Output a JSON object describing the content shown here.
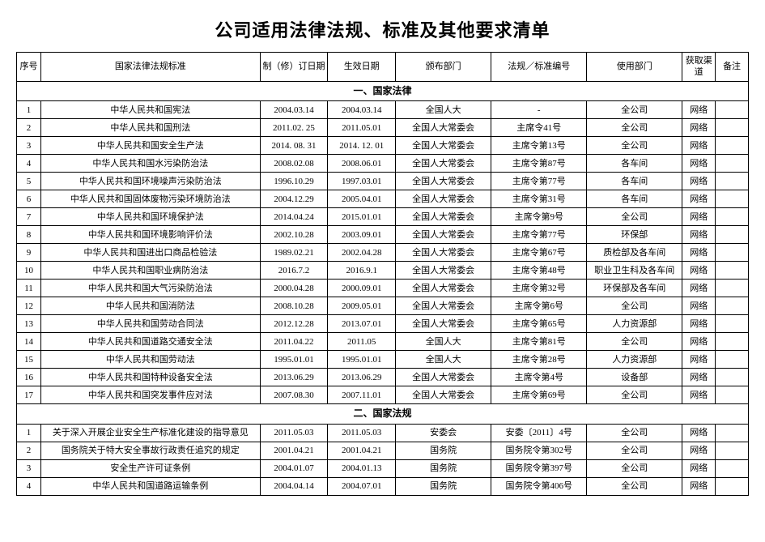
{
  "title": "公司适用法律法规、标准及其他要求清单",
  "columns": {
    "seq": "序号",
    "name": "国家法律法规标准",
    "revision": "制（修）订日期",
    "effective": "生效日期",
    "issuer": "颁布部门",
    "code": "法规／标准编号",
    "userDept": "使用部门",
    "channel": "获取渠道",
    "note": "备注"
  },
  "sections": [
    {
      "heading": "一、国家法律",
      "rows": [
        {
          "seq": "1",
          "name": "中华人民共和国宪法",
          "rev": "2004.03.14",
          "eff": "2004.03.14",
          "issuer": "全国人大",
          "code": "-",
          "use": "全公司",
          "chan": "网络",
          "note": ""
        },
        {
          "seq": "2",
          "name": "中华人民共和国刑法",
          "rev": "2011.02. 25",
          "eff": "2011.05.01",
          "issuer": "全国人大常委会",
          "code": "主席令41号",
          "use": "全公司",
          "chan": "网络",
          "note": ""
        },
        {
          "seq": "3",
          "name": "中华人民共和国安全生产法",
          "rev": "2014. 08. 31",
          "eff": "2014. 12. 01",
          "issuer": "全国人大常委会",
          "code": "主席令第13号",
          "use": "全公司",
          "chan": "网络",
          "note": ""
        },
        {
          "seq": "4",
          "name": "中华人民共和国水污染防治法",
          "rev": "2008.02.08",
          "eff": "2008.06.01",
          "issuer": "全国人大常委会",
          "code": "主席令第87号",
          "use": "各车间",
          "chan": "网络",
          "note": ""
        },
        {
          "seq": "5",
          "name": "中华人民共和国环境噪声污染防治法",
          "rev": "1996.10.29",
          "eff": "1997.03.01",
          "issuer": "全国人大常委会",
          "code": "主席令第77号",
          "use": "各车间",
          "chan": "网络",
          "note": ""
        },
        {
          "seq": "6",
          "name": "中华人民共和国固体废物污染环境防治法",
          "rev": "2004.12.29",
          "eff": "2005.04.01",
          "issuer": "全国人大常委会",
          "code": "主席令第31号",
          "use": "各车间",
          "chan": "网络",
          "note": ""
        },
        {
          "seq": "7",
          "name": "中华人民共和国环境保护法",
          "rev": "2014.04.24",
          "eff": "2015.01.01",
          "issuer": "全国人大常委会",
          "code": "主席令第9号",
          "use": "全公司",
          "chan": "网络",
          "note": ""
        },
        {
          "seq": "8",
          "name": "中华人民共和国环境影响评价法",
          "rev": "2002.10.28",
          "eff": "2003.09.01",
          "issuer": "全国人大常委会",
          "code": "主席令第77号",
          "use": "环保部",
          "chan": "网络",
          "note": ""
        },
        {
          "seq": "9",
          "name": "中华人民共和国进出口商品检验法",
          "rev": "1989.02.21",
          "eff": "2002.04.28",
          "issuer": "全国人大常委会",
          "code": "主席令第67号",
          "use": "质检部及各车间",
          "chan": "网络",
          "note": ""
        },
        {
          "seq": "10",
          "name": "中华人民共和国职业病防治法",
          "rev": "2016.7.2",
          "eff": "2016.9.1",
          "issuer": "全国人大常委会",
          "code": "主席令第48号",
          "use": "职业卫生科及各车间",
          "chan": "网络",
          "note": ""
        },
        {
          "seq": "11",
          "name": "中华人民共和国大气污染防治法",
          "rev": "2000.04.28",
          "eff": "2000.09.01",
          "issuer": "全国人大常委会",
          "code": "主席令第32号",
          "use": "环保部及各车间",
          "chan": "网络",
          "note": ""
        },
        {
          "seq": "12",
          "name": "中华人民共和国消防法",
          "rev": "2008.10.28",
          "eff": "2009.05.01",
          "issuer": "全国人大常委会",
          "code": "主席令第6号",
          "use": "全公司",
          "chan": "网络",
          "note": ""
        },
        {
          "seq": "13",
          "name": "中华人民共和国劳动合同法",
          "rev": "2012.12.28",
          "eff": "2013.07.01",
          "issuer": "全国人大常委会",
          "code": "主席令第65号",
          "use": "人力资源部",
          "chan": "网络",
          "note": ""
        },
        {
          "seq": "14",
          "name": "中华人民共和国道路交通安全法",
          "rev": "2011.04.22",
          "eff": "2011.05",
          "issuer": "全国人大",
          "code": "主席令第81号",
          "use": "全公司",
          "chan": "网络",
          "note": ""
        },
        {
          "seq": "15",
          "name": "中华人民共和国劳动法",
          "rev": "1995.01.01",
          "eff": "1995.01.01",
          "issuer": "全国人大",
          "code": "主席令第28号",
          "use": "人力资源部",
          "chan": "网络",
          "note": ""
        },
        {
          "seq": "16",
          "name": "中华人民共和国特种设备安全法",
          "rev": "2013.06.29",
          "eff": "2013.06.29",
          "issuer": "全国人大常委会",
          "code": "主席令第4号",
          "use": "设备部",
          "chan": "网络",
          "note": ""
        },
        {
          "seq": "17",
          "name": "中华人民共和国突发事件应对法",
          "rev": "2007.08.30",
          "eff": "2007.11.01",
          "issuer": "全国人大常委会",
          "code": "主席令第69号",
          "use": "全公司",
          "chan": "网络",
          "note": ""
        }
      ]
    },
    {
      "heading": "二、国家法规",
      "rows": [
        {
          "seq": "1",
          "name": "关于深入开展企业安全生产标准化建设的指导意见",
          "rev": "2011.05.03",
          "eff": "2011.05.03",
          "issuer": "安委会",
          "code": "安委〔2011〕4号",
          "use": "全公司",
          "chan": "网络",
          "note": ""
        },
        {
          "seq": "2",
          "name": "国务院关于特大安全事故行政责任追究的规定",
          "rev": "2001.04.21",
          "eff": "2001.04.21",
          "issuer": "国务院",
          "code": "国务院令第302号",
          "use": "全公司",
          "chan": "网络",
          "note": ""
        },
        {
          "seq": "3",
          "name": "安全生产许可证条例",
          "rev": "2004.01.07",
          "eff": "2004.01.13",
          "issuer": "国务院",
          "code": "国务院令第397号",
          "use": "全公司",
          "chan": "网络",
          "note": ""
        },
        {
          "seq": "4",
          "name": "中华人民共和国道路运输条例",
          "rev": "2004.04.14",
          "eff": "2004.07.01",
          "issuer": "国务院",
          "code": "国务院令第406号",
          "use": "全公司",
          "chan": "网络",
          "note": ""
        }
      ]
    }
  ]
}
